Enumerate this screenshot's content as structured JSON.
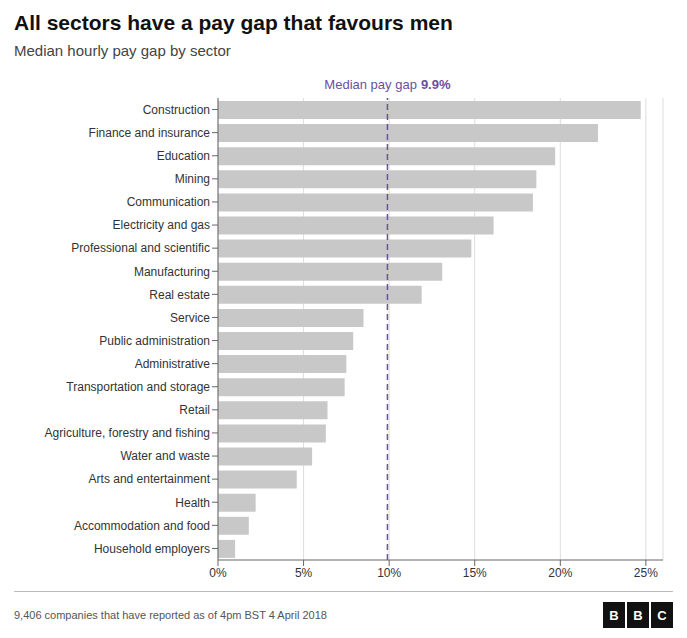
{
  "chart_data": {
    "type": "bar",
    "orientation": "horizontal",
    "title": "All sectors have a pay gap that favours men",
    "subtitle": "Median hourly pay gap by sector",
    "categories": [
      "Construction",
      "Finance and insurance",
      "Education",
      "Mining",
      "Communication",
      "Electricity and gas",
      "Professional and scientific",
      "Manufacturing",
      "Real estate",
      "Service",
      "Public administration",
      "Administrative",
      "Transportation and storage",
      "Retail",
      "Agriculture, forestry and fishing",
      "Water and waste",
      "Arts and entertainment",
      "Health",
      "Accommodation and food",
      "Household employers"
    ],
    "values": [
      24.7,
      22.2,
      19.7,
      18.6,
      18.4,
      16.1,
      14.8,
      13.1,
      11.9,
      8.5,
      7.9,
      7.5,
      7.4,
      6.4,
      6.3,
      5.5,
      4.6,
      2.2,
      1.8,
      1.0
    ],
    "color": "#c8c8c8",
    "xlim": [
      0,
      26
    ],
    "xticks": [
      {
        "value": 0,
        "label": "0%"
      },
      {
        "value": 5,
        "label": "5%"
      },
      {
        "value": 10,
        "label": "10%"
      },
      {
        "value": 15,
        "label": "15%"
      },
      {
        "value": 20,
        "label": "20%"
      },
      {
        "value": 25,
        "label": "25%"
      }
    ],
    "grid": true,
    "annotations": [
      {
        "text": "Median pay gap",
        "value_label": "9.9%",
        "x": 9.9,
        "color": "#6b4fa0"
      }
    ],
    "footnote": "9,406 companies that have reported as of 4pm BST 4 April 2018",
    "logo": "BBC"
  }
}
